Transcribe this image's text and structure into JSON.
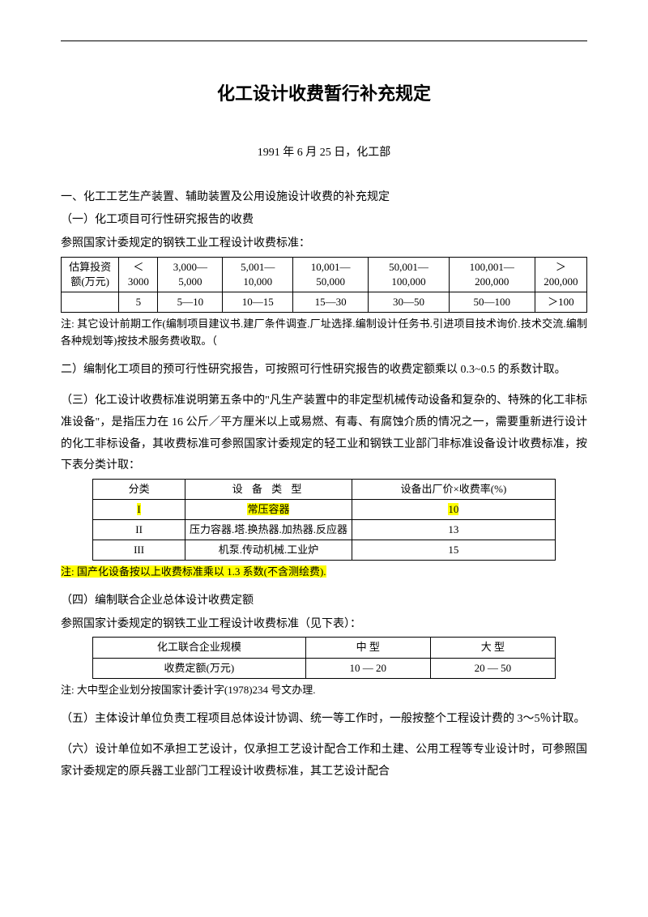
{
  "title": "化工设计收费暂行补充规定",
  "subtitle": "1991 年 6 月 25 日，化工部",
  "section1": {
    "heading": "一、化工工艺生产装置、辅助装置及公用设施设计收费的补充规定",
    "sub1_heading": "（一）化工项目可行性研究报告的收费",
    "sub1_line": "参照国家计委规定的钢铁工业工程设计收费标准：",
    "table1": {
      "row1": [
        "估算投资额(万元)",
        "＜3000",
        "3,000—5,000",
        "5,001—10,000",
        "10,001—50,000",
        "50,001—100,000",
        "100,001—200,000",
        "＞200,000"
      ],
      "row2": [
        "",
        "5",
        "5—10",
        "10—15",
        "15—30",
        "30—50",
        "50—100",
        "＞100"
      ]
    },
    "note1": "注: 其它设计前期工作(编制项目建议书.建厂条件调查.厂址选择.编制设计任务书.引进项目技术询价.技术交流.编制各种规划等)按技术服务费收取。（",
    "para2": "二）编制化工项目的预可行性研究报告，可按照可行性研究报告的收费定额乘以 0.3~0.5 的系数计取。",
    "para3": "（三）化工设计收费标准说明第五条中的\"凡生产装置中的非定型机械传动设备和复杂的、特殊的化工非标准设备\"，是指压力在 16 公斤／平方厘米以上或易燃、有毒、有腐蚀介质的情况之一，需要重新进行设计的化工非标设备，其收费标准可参照国家计委规定的轻工业和钢铁工业部门非标准设备设计收费标准，按下表分类计取：",
    "table2": {
      "header": [
        "分类",
        "设 备 类 型",
        "设备出厂价×收费率(%)"
      ],
      "rows": [
        [
          "I",
          "常压容器",
          "10"
        ],
        [
          "II",
          "压力容器.塔.换热器.加热器.反应器",
          "13"
        ],
        [
          "III",
          "机泵.传动机械.工业炉",
          "15"
        ]
      ],
      "highlight_row_index": 0
    },
    "note2": "注: 国产化设备按以上收费标准乘以 1.3 系数(不含测绘费).",
    "para4_heading": "（四）编制联合企业总体设计收费定额",
    "para4_line": "参照国家计委规定的钢铁工业工程设计收费标准（见下表）：",
    "table3": {
      "header": [
        "化工联合企业规模",
        "中 型",
        "大 型"
      ],
      "row": [
        "收费定额(万元)",
        "10 — 20",
        "20 — 50"
      ]
    },
    "note3": "注: 大中型企业划分按国家计委计字(1978)234 号文办理.",
    "para5": "（五）主体设计单位负责工程项目总体设计协调、统一等工作时，一般按整个工程设计费的 3～5％计取。",
    "para6": "（六）设计单位如不承担工艺设计，仅承担工艺设计配合工作和土建、公用工程等专业设计时，可参照国家计委规定的原兵器工业部门工程设计收费标准，其工艺设计配合"
  },
  "colors": {
    "highlight": "#ffff00",
    "text": "#000000",
    "background": "#ffffff",
    "border": "#000000"
  }
}
